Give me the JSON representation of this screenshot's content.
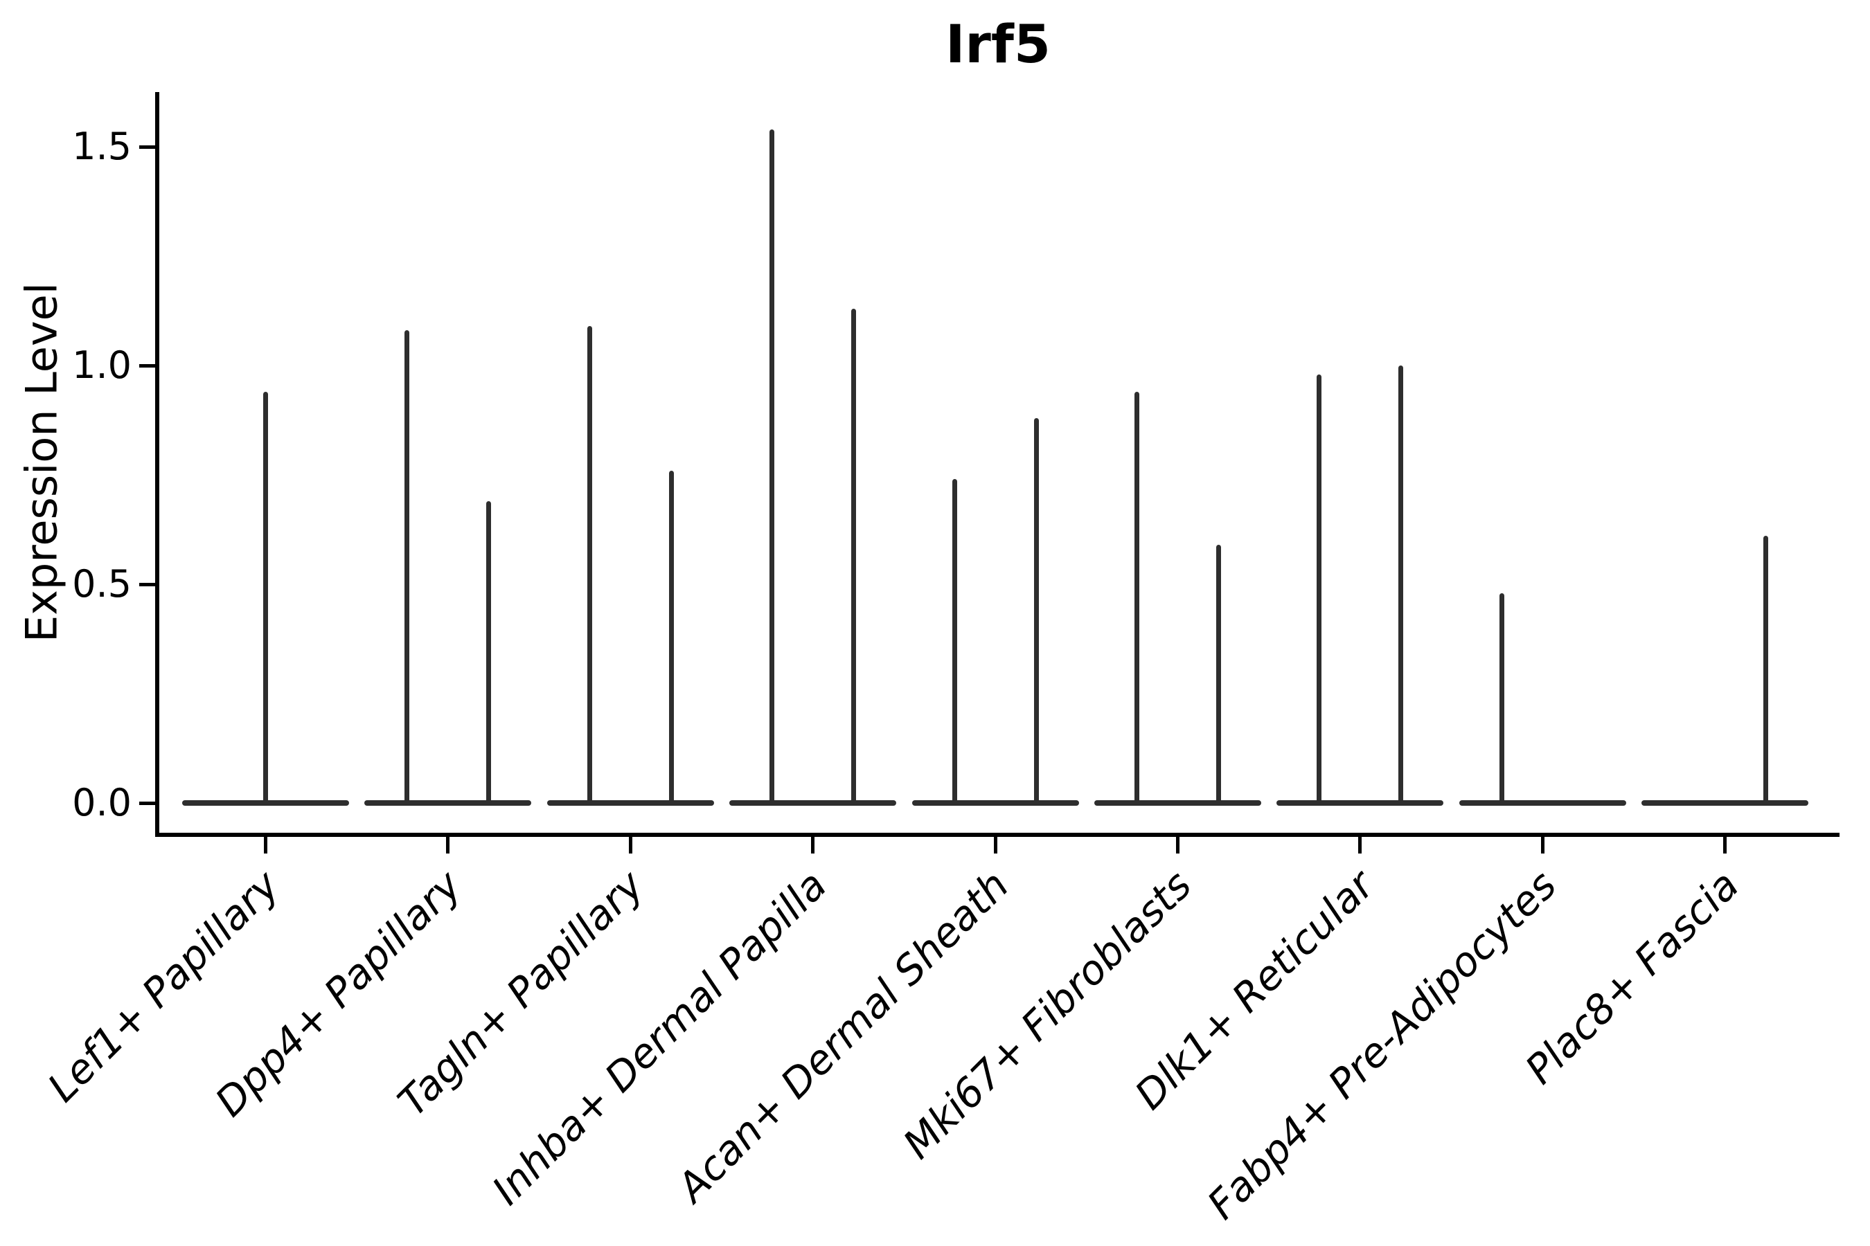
{
  "figure": {
    "title": "Irf5",
    "ylabel": "Expression Level",
    "ytick_labels": [
      "0.0",
      "0.5",
      "1.0",
      "1.5"
    ]
  },
  "chart_data": {
    "type": "violin",
    "title": "Irf5",
    "xlabel": "",
    "ylabel": "Expression Level",
    "ylim": [
      0,
      1.62
    ],
    "yticks": [
      0.0,
      0.5,
      1.0,
      1.5
    ],
    "grid": false,
    "legend_position": "none",
    "baseline_value": 0.0,
    "categories": [
      "Lef1+ Papillary",
      "Dpp4+ Papillary",
      "Tagln+ Papillary",
      "Inhba+ Dermal Papilla",
      "Acan+ Dermal Sheath",
      "Mki67+ Fibroblasts",
      "Dlk1+ Reticular",
      "Fabp4+ Pre-Adipocytes",
      "Plac8+ Fascia"
    ],
    "violins": [
      {
        "category": "Lef1+ Papillary",
        "spikes": [
          {
            "position": "center",
            "max_expression": 0.94
          }
        ]
      },
      {
        "category": "Dpp4+ Papillary",
        "spikes": [
          {
            "position": "left",
            "max_expression": 1.08
          },
          {
            "position": "right",
            "max_expression": 0.69
          }
        ]
      },
      {
        "category": "Tagln+ Papillary",
        "spikes": [
          {
            "position": "left",
            "max_expression": 1.09
          },
          {
            "position": "right",
            "max_expression": 0.76
          }
        ]
      },
      {
        "category": "Inhba+ Dermal Papilla",
        "spikes": [
          {
            "position": "left",
            "max_expression": 1.54
          },
          {
            "position": "right",
            "max_expression": 1.13
          }
        ]
      },
      {
        "category": "Acan+ Dermal Sheath",
        "spikes": [
          {
            "position": "left",
            "max_expression": 0.74
          },
          {
            "position": "right",
            "max_expression": 0.88
          }
        ]
      },
      {
        "category": "Mki67+ Fibroblasts",
        "spikes": [
          {
            "position": "left",
            "max_expression": 0.94
          },
          {
            "position": "right",
            "max_expression": 0.59
          }
        ]
      },
      {
        "category": "Dlk1+ Reticular",
        "spikes": [
          {
            "position": "left",
            "max_expression": 0.98
          },
          {
            "position": "right",
            "max_expression": 1.0
          }
        ]
      },
      {
        "category": "Fabp4+ Pre-Adipocytes",
        "spikes": [
          {
            "position": "left",
            "max_expression": 0.48
          }
        ]
      },
      {
        "category": "Plac8+ Fascia",
        "spikes": [
          {
            "position": "right",
            "max_expression": 0.61
          }
        ]
      }
    ]
  },
  "colors": {
    "violin_line": "#2e2e2e",
    "axis": "#000000",
    "text": "#000000",
    "background": "#ffffff"
  }
}
